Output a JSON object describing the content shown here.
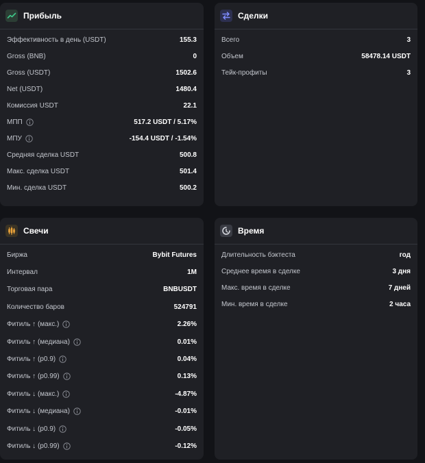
{
  "profit": {
    "title": "Прибыль",
    "icon": "trend-up-icon",
    "rows": [
      {
        "label": "Эффективность в день (USDT)",
        "value": "155.3",
        "info": false
      },
      {
        "label": "Gross (BNB)",
        "value": "0",
        "info": false
      },
      {
        "label": "Gross (USDT)",
        "value": "1502.6",
        "info": false
      },
      {
        "label": "Net (USDT)",
        "value": "1480.4",
        "info": false
      },
      {
        "label": "Комиссия USDT",
        "value": "22.1",
        "info": false
      },
      {
        "label": "МПП",
        "value": "517.2 USDT / 5.17%",
        "info": true
      },
      {
        "label": "МПУ",
        "value": "-154.4 USDT / -1.54%",
        "info": true
      },
      {
        "label": "Средняя сделка USDT",
        "value": "500.8",
        "info": false
      },
      {
        "label": "Макс. сделка USDT",
        "value": "501.4",
        "info": false
      },
      {
        "label": "Мин. сделка USDT",
        "value": "500.2",
        "info": false
      }
    ]
  },
  "deals": {
    "title": "Сделки",
    "icon": "swap-arrows-icon",
    "rows": [
      {
        "label": "Всего",
        "value": "3",
        "info": false
      },
      {
        "label": "Объем",
        "value": "58478.14 USDT",
        "info": false
      },
      {
        "label": "Тейк-профиты",
        "value": "3",
        "info": false
      }
    ]
  },
  "candles": {
    "title": "Свечи",
    "icon": "candlestick-icon",
    "rows": [
      {
        "label": "Биржа",
        "value": "Bybit Futures",
        "info": false
      },
      {
        "label": "Интервал",
        "value": "1M",
        "info": false
      },
      {
        "label": "Торговая пара",
        "value": "BNBUSDT",
        "info": false
      },
      {
        "label": "Количество баров",
        "value": "524791",
        "info": false
      },
      {
        "label": "Фитиль ↑ (макс.)",
        "value": "2.26%",
        "info": true
      },
      {
        "label": "Фитиль ↑ (медиана)",
        "value": "0.01%",
        "info": true
      },
      {
        "label": "Фитиль ↑ (p0.9)",
        "value": "0.04%",
        "info": true
      },
      {
        "label": "Фитиль ↑ (p0.99)",
        "value": "0.13%",
        "info": true
      },
      {
        "label": "Фитиль ↓ (макс.)",
        "value": "-4.87%",
        "info": true
      },
      {
        "label": "Фитиль ↓ (медиана)",
        "value": "-0.01%",
        "info": true
      },
      {
        "label": "Фитиль ↓ (p0.9)",
        "value": "-0.05%",
        "info": true
      },
      {
        "label": "Фитиль ↓ (p0.99)",
        "value": "-0.12%",
        "info": true
      }
    ]
  },
  "time": {
    "title": "Время",
    "icon": "clock-icon",
    "rows": [
      {
        "label": "Длительность бэктеста",
        "value": "год",
        "info": false
      },
      {
        "label": "Среднее время в сделке",
        "value": "3 дня",
        "info": false
      },
      {
        "label": "Макс. время в сделке",
        "value": "7 дней",
        "info": false
      },
      {
        "label": "Мин. время в сделке",
        "value": "2 часа",
        "info": false
      }
    ]
  },
  "colors": {
    "background": "#121317",
    "card": "#1f2025",
    "profit_icon_bg": "#2c3e35",
    "profit_icon_fg": "#3fc98a",
    "deals_icon_bg": "#2d3050",
    "deals_icon_fg": "#7f8cff",
    "candles_icon_bg": "#3a3325",
    "candles_icon_fg": "#f0a63a",
    "time_icon_bg": "#3a3c44",
    "time_icon_fg": "#d9dbe0"
  }
}
